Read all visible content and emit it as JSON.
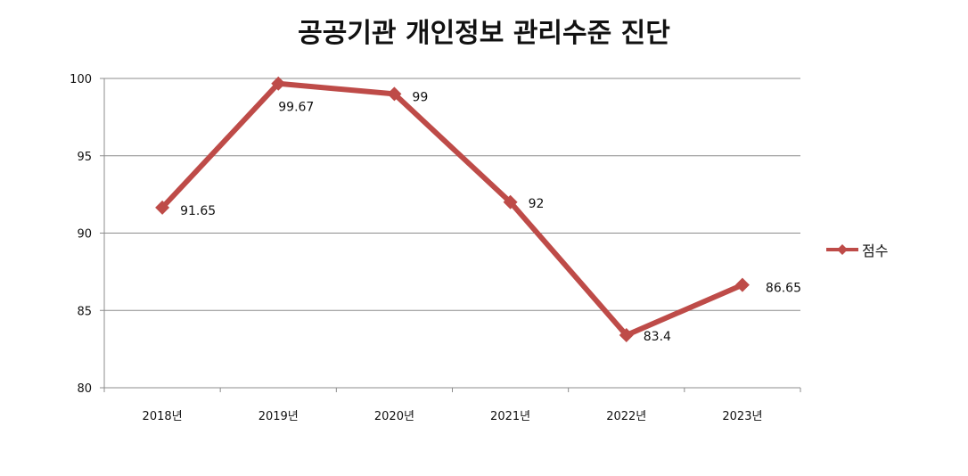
{
  "chart_data": {
    "type": "line",
    "title": "공공기관 개인정보 관리수준 진단",
    "categories": [
      "2018년",
      "2019년",
      "2020년",
      "2021년",
      "2022년",
      "2023년"
    ],
    "series": [
      {
        "name": "점수",
        "values": [
          91.65,
          99.67,
          99,
          92,
          83.4,
          86.65
        ],
        "color": "#be4b48"
      }
    ],
    "data_labels": [
      "91.65",
      "99.67",
      "99",
      "92",
      "83.4",
      "86.65"
    ],
    "yticks": [
      "80",
      "85",
      "90",
      "95",
      "100"
    ],
    "ylim": [
      80,
      100
    ],
    "grid": true,
    "legend": "right"
  }
}
